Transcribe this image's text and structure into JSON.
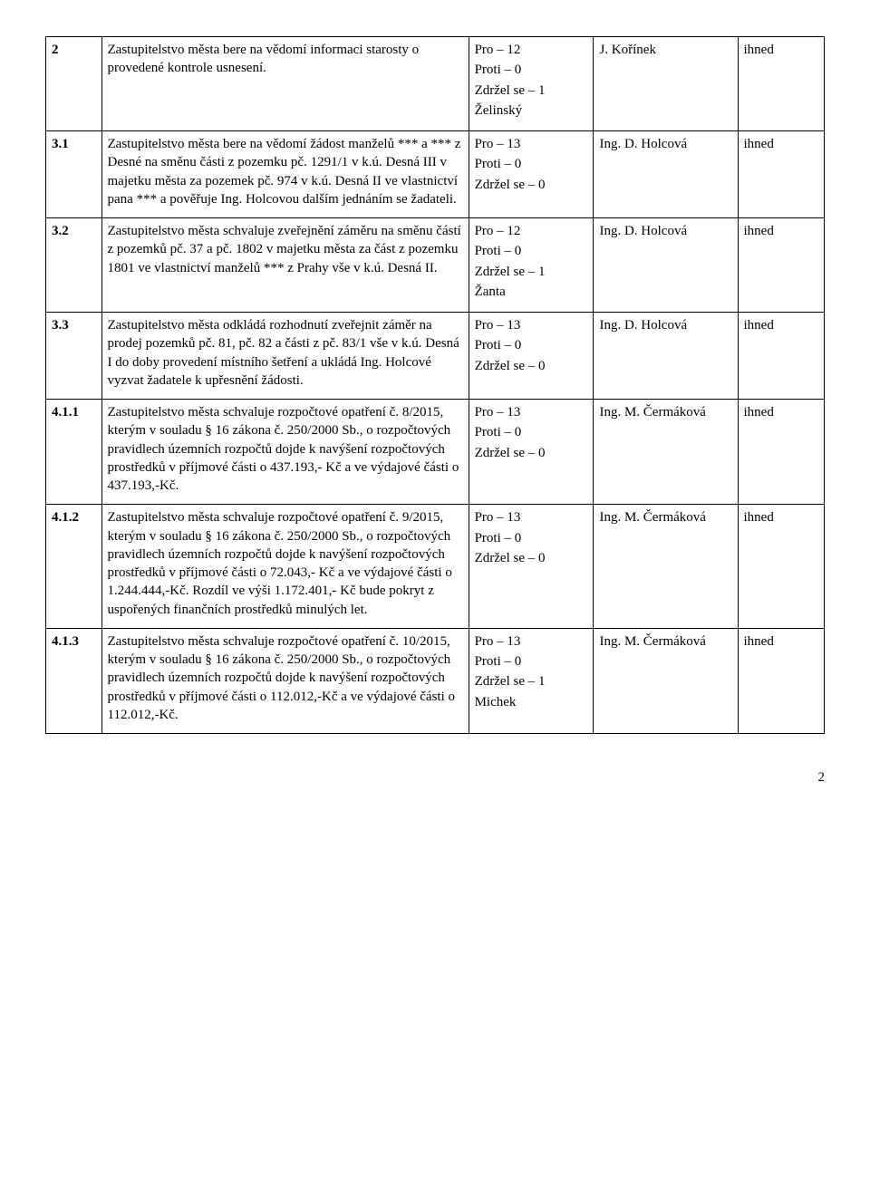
{
  "pageNumber": "2",
  "rows": [
    {
      "num": "2",
      "desc": "Zastupitelstvo města bere na vědomí informaci starosty o provedené kontrole usnesení.",
      "votes": [
        "Pro – 12",
        "Proti – 0",
        "Zdržel se – 1",
        "Želinský"
      ],
      "person": "J. Kořínek",
      "term": "ihned"
    },
    {
      "num": "3.1",
      "desc": "Zastupitelstvo města bere na vědomí žádost manželů *** a *** z Desné na směnu části z pozemku pč. 1291/1 v k.ú. Desná III v majetku města za pozemek pč. 974 v k.ú. Desná II ve vlastnictví pana *** a pověřuje Ing. Holcovou dalším jednáním se žadateli.",
      "votes": [
        "Pro – 13",
        "Proti – 0",
        "Zdržel se – 0"
      ],
      "person": "Ing. D. Holcová",
      "term": "ihned"
    },
    {
      "num": "3.2",
      "desc": "Zastupitelstvo města schvaluje zveřejnění záměru na směnu částí z pozemků pč. 37 a pč. 1802 v majetku města za část z pozemku 1801 ve vlastnictví manželů *** z Prahy vše v k.ú. Desná II.",
      "votes": [
        "Pro – 12",
        "Proti – 0",
        "Zdržel se – 1",
        "Žanta"
      ],
      "person": "Ing. D. Holcová",
      "term": "ihned"
    },
    {
      "num": "3.3",
      "desc": "Zastupitelstvo města odkládá rozhodnutí zveřejnit záměr na prodej pozemků pč. 81, pč. 82 a části z pč. 83/1 vše v k.ú. Desná I do doby provedení místního šetření a ukládá Ing. Holcové vyzvat žadatele k upřesnění žádosti.",
      "votes": [
        "Pro – 13",
        "Proti – 0",
        "Zdržel se – 0"
      ],
      "person": "Ing. D. Holcová",
      "term": "ihned"
    },
    {
      "num": "4.1.1",
      "desc": "Zastupitelstvo města schvaluje rozpočtové opatření č. 8/2015, kterým v souladu § 16 zákona č. 250/2000 Sb., o rozpočtových pravidlech územních rozpočtů dojde k navýšení rozpočtových prostředků v příjmové části o 437.193,- Kč a ve výdajové části o 437.193,-Kč.",
      "votes": [
        "Pro – 13",
        "Proti – 0",
        "Zdržel se – 0"
      ],
      "person": "Ing. M. Čermáková",
      "term": "ihned"
    },
    {
      "num": "4.1.2",
      "desc": "Zastupitelstvo města schvaluje rozpočtové opatření č. 9/2015, kterým v souladu § 16 zákona č. 250/2000 Sb., o rozpočtových pravidlech územních rozpočtů dojde k navýšení rozpočtových prostředků v příjmové části o 72.043,- Kč a ve výdajové části o 1.244.444,-Kč. Rozdíl ve výši 1.172.401,- Kč bude pokryt z uspořených finančních prostředků minulých let.",
      "votes": [
        "Pro – 13",
        "Proti – 0",
        "Zdržel se – 0"
      ],
      "person": "Ing. M. Čermáková",
      "term": "ihned"
    },
    {
      "num": "4.1.3",
      "desc": "Zastupitelstvo města schvaluje rozpočtové opatření č. 10/2015, kterým v souladu § 16 zákona č. 250/2000 Sb., o rozpočtových pravidlech územních rozpočtů dojde k navýšení rozpočtových prostředků v příjmové části o 112.012,-Kč a ve výdajové části o 112.012,-Kč.",
      "votes": [
        "Pro – 13",
        "Proti – 0",
        "Zdržel se – 1",
        "Michek"
      ],
      "person": "Ing. M. Čermáková",
      "term": "ihned"
    }
  ]
}
